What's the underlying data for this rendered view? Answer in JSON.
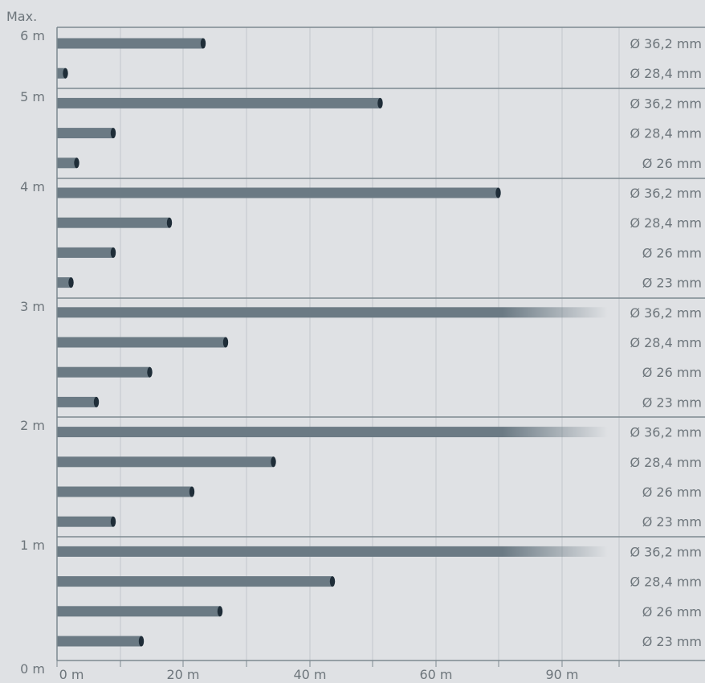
{
  "chart_data": {
    "type": "bar",
    "orientation": "horizontal",
    "title": "",
    "top_label": "Max.",
    "x_ticks": [
      "0 m",
      "20 m",
      "40 m",
      "60 m",
      "90 m"
    ],
    "height_ticks": [
      "0 m",
      "1 m",
      "2 m",
      "3 m",
      "4 m",
      "5 m",
      "6 m"
    ],
    "x_range_m": [
      0,
      100
    ],
    "groups": [
      {
        "height": "6 m",
        "bars": [
          {
            "label": "Ø 36,2 mm",
            "value": 26,
            "exceeds_axis": false
          },
          {
            "label": "Ø 28,4 mm",
            "value": 1.5,
            "exceeds_axis": false
          }
        ]
      },
      {
        "height": "5 m",
        "bars": [
          {
            "label": "Ø 36,2 mm",
            "value": 57.5,
            "exceeds_axis": false
          },
          {
            "label": "Ø 28,4 mm",
            "value": 10,
            "exceeds_axis": false
          },
          {
            "label": "Ø 26 mm",
            "value": 3.5,
            "exceeds_axis": false
          }
        ]
      },
      {
        "height": "4 m",
        "bars": [
          {
            "label": "Ø 36,2 mm",
            "value": 78.5,
            "exceeds_axis": false
          },
          {
            "label": "Ø 28,4 mm",
            "value": 20,
            "exceeds_axis": false
          },
          {
            "label": "Ø 26 mm",
            "value": 10,
            "exceeds_axis": false
          },
          {
            "label": "Ø 23 mm",
            "value": 2.5,
            "exceeds_axis": false
          }
        ]
      },
      {
        "height": "3 m",
        "bars": [
          {
            "label": "Ø 36,2 mm",
            "value": 90,
            "exceeds_axis": true
          },
          {
            "label": "Ø 28,4 mm",
            "value": 30,
            "exceeds_axis": false
          },
          {
            "label": "Ø 26 mm",
            "value": 16.5,
            "exceeds_axis": false
          },
          {
            "label": "Ø 23 mm",
            "value": 7,
            "exceeds_axis": false
          }
        ]
      },
      {
        "height": "2 m",
        "bars": [
          {
            "label": "Ø 36,2 mm",
            "value": 90,
            "exceeds_axis": true
          },
          {
            "label": "Ø 28,4 mm",
            "value": 38.5,
            "exceeds_axis": false
          },
          {
            "label": "Ø 26 mm",
            "value": 24,
            "exceeds_axis": false
          },
          {
            "label": "Ø 23 mm",
            "value": 10,
            "exceeds_axis": false
          }
        ]
      },
      {
        "height": "1 m",
        "bars": [
          {
            "label": "Ø 36,2 mm",
            "value": 90,
            "exceeds_axis": true
          },
          {
            "label": "Ø 28,4 mm",
            "value": 49,
            "exceeds_axis": false
          },
          {
            "label": "Ø 26 mm",
            "value": 29,
            "exceeds_axis": false
          },
          {
            "label": "Ø 23 mm",
            "value": 15,
            "exceeds_axis": false
          }
        ]
      }
    ],
    "grid": true,
    "colors": {
      "background": "#dfe1e4",
      "bar": "#6b7a84",
      "bar_end": "#1f2d38",
      "separator": "#7d8990",
      "grid": "#c3c8cc",
      "text": "#6d757b"
    }
  }
}
